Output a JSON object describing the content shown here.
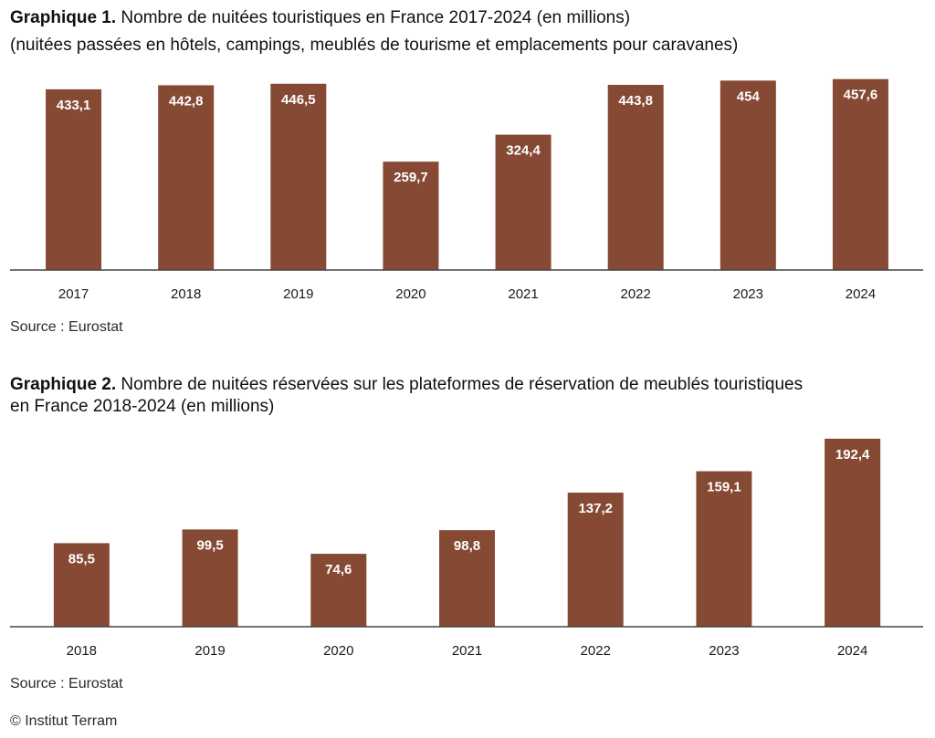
{
  "chart_data": [
    {
      "type": "bar",
      "title_prefix": "Graphique 1.",
      "title": "Nombre de nuitées touristiques en France 2017-2024 (en millions)",
      "subtitle": "(nuitées passées en hôtels, campings, meublés de tourisme et emplacements pour caravanes)",
      "xlabel": "",
      "ylabel": "",
      "categories": [
        "2017",
        "2018",
        "2019",
        "2020",
        "2021",
        "2022",
        "2023",
        "2024"
      ],
      "values": [
        433.1,
        442.8,
        446.5,
        259.7,
        324.4,
        443.8,
        454,
        457.6
      ],
      "value_labels": [
        "433,1",
        "442,8",
        "446,5",
        "259,7",
        "324,4",
        "443,8",
        "454",
        "457,6"
      ],
      "ylim": [
        0,
        460
      ],
      "grid": false,
      "legend": "none",
      "bar_color": "#864a34",
      "source": "Source : Eurostat"
    },
    {
      "type": "bar",
      "title_prefix": "Graphique 2.",
      "title": "Nombre de nuitées réservées sur les plateformes de réservation de meublés touristiques",
      "title_line2": "en France 2018-2024  (en millions)",
      "xlabel": "",
      "ylabel": "",
      "categories": [
        "2018",
        "2019",
        "2020",
        "2021",
        "2022",
        "2023",
        "2024"
      ],
      "values": [
        85.5,
        99.5,
        74.6,
        98.8,
        137.2,
        159.1,
        192.4
      ],
      "value_labels": [
        "85,5",
        "99,5",
        "74,6",
        "98,8",
        "137,2",
        "159,1",
        "192,4"
      ],
      "ylim": [
        0,
        195
      ],
      "grid": false,
      "legend": "none",
      "bar_color": "#864a34",
      "source": "Source : Eurostat"
    }
  ],
  "footer": {
    "copyright": "© Institut Terram"
  }
}
